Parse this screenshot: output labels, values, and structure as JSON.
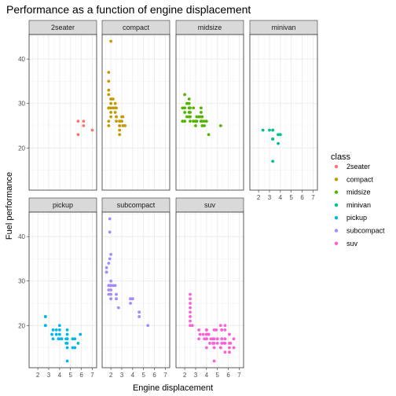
{
  "chart_data": {
    "type": "scatter",
    "title": "Performance as a function of engine displacement",
    "xlabel": "Engine displacement",
    "ylabel": "Fuel performance",
    "xlim": [
      1.2,
      7.4
    ],
    "ylim": [
      10.5,
      45.5
    ],
    "x_ticks": [
      2,
      3,
      4,
      5,
      6,
      7
    ],
    "y_ticks": [
      20,
      30,
      40
    ],
    "grid": true,
    "facet_by": "class",
    "legend": {
      "title": "class",
      "position": "right"
    },
    "series": [
      {
        "name": "2seater",
        "color": "#F8766D",
        "points": [
          [
            5.7,
            26
          ],
          [
            5.7,
            23
          ],
          [
            6.2,
            26
          ],
          [
            6.2,
            25
          ],
          [
            7.0,
            24
          ]
        ]
      },
      {
        "name": "compact",
        "color": "#C49A00",
        "points": [
          [
            1.8,
            29
          ],
          [
            1.8,
            29
          ],
          [
            2.0,
            31
          ],
          [
            2.0,
            30
          ],
          [
            2.8,
            26
          ],
          [
            2.8,
            26
          ],
          [
            3.1,
            27
          ],
          [
            1.8,
            26
          ],
          [
            1.8,
            25
          ],
          [
            2.0,
            28
          ],
          [
            2.0,
            27
          ],
          [
            2.8,
            25
          ],
          [
            2.8,
            25
          ],
          [
            3.1,
            25
          ],
          [
            1.8,
            37
          ],
          [
            1.8,
            35
          ],
          [
            1.8,
            29
          ],
          [
            2.0,
            44
          ],
          [
            1.8,
            33
          ],
          [
            2.5,
            26
          ],
          [
            2.5,
            27
          ],
          [
            2.2,
            31
          ],
          [
            2.2,
            29
          ],
          [
            2.4,
            30
          ],
          [
            2.4,
            29
          ],
          [
            3.0,
            27
          ],
          [
            3.3,
            25
          ],
          [
            1.8,
            32
          ],
          [
            2.0,
            29
          ],
          [
            2.8,
            24
          ],
          [
            2.8,
            23
          ],
          [
            2.5,
            29
          ],
          [
            2.5,
            27
          ],
          [
            2.4,
            28
          ],
          [
            3.0,
            26
          ]
        ]
      },
      {
        "name": "midsize",
        "color": "#53B400",
        "points": [
          [
            2.8,
            26
          ],
          [
            3.1,
            27
          ],
          [
            4.2,
            23
          ],
          [
            2.4,
            27
          ],
          [
            2.4,
            30
          ],
          [
            3.1,
            26
          ],
          [
            3.5,
            29
          ],
          [
            3.6,
            26
          ],
          [
            3.6,
            25
          ],
          [
            2.4,
            28
          ],
          [
            2.4,
            29
          ],
          [
            2.5,
            26
          ],
          [
            2.5,
            27
          ],
          [
            3.5,
            27
          ],
          [
            3.5,
            26
          ],
          [
            3.0,
            26
          ],
          [
            3.0,
            25
          ],
          [
            3.5,
            28
          ],
          [
            1.8,
            29
          ],
          [
            2.2,
            27
          ],
          [
            2.2,
            30
          ],
          [
            2.4,
            31
          ],
          [
            2.4,
            29
          ],
          [
            2.5,
            29
          ],
          [
            2.5,
            28
          ],
          [
            3.5,
            26
          ],
          [
            3.3,
            27
          ],
          [
            3.8,
            26
          ],
          [
            3.8,
            25
          ],
          [
            5.3,
            25
          ],
          [
            1.8,
            26
          ],
          [
            1.8,
            26
          ],
          [
            2.0,
            26
          ],
          [
            2.0,
            32
          ],
          [
            2.8,
            29
          ],
          [
            3.1,
            26
          ],
          [
            2.0,
            28
          ],
          [
            2.0,
            29
          ],
          [
            2.8,
            26
          ],
          [
            3.6,
            27
          ],
          [
            4.0,
            26
          ]
        ]
      },
      {
        "name": "minivan",
        "color": "#00C094",
        "points": [
          [
            2.4,
            24
          ],
          [
            3.0,
            24
          ],
          [
            3.3,
            22
          ],
          [
            3.3,
            24
          ],
          [
            3.3,
            24
          ],
          [
            3.3,
            17
          ],
          [
            3.3,
            22
          ],
          [
            3.8,
            21
          ],
          [
            3.8,
            23
          ],
          [
            3.8,
            23
          ],
          [
            4.0,
            23
          ]
        ]
      },
      {
        "name": "pickup",
        "color": "#00B6EB",
        "points": [
          [
            2.7,
            20
          ],
          [
            2.7,
            22
          ],
          [
            3.4,
            17
          ],
          [
            3.7,
            19
          ],
          [
            3.7,
            18
          ],
          [
            3.9,
            17
          ],
          [
            3.9,
            17
          ],
          [
            4.7,
            19
          ],
          [
            4.7,
            17
          ],
          [
            4.7,
            17
          ],
          [
            5.2,
            17
          ],
          [
            5.2,
            15
          ],
          [
            4.7,
            12
          ],
          [
            4.7,
            17
          ],
          [
            5.2,
            17
          ],
          [
            5.7,
            16
          ],
          [
            5.9,
            18
          ],
          [
            4.7,
            15
          ],
          [
            4.7,
            16
          ],
          [
            2.7,
            22
          ],
          [
            2.7,
            20
          ],
          [
            3.4,
            19
          ],
          [
            4.0,
            18
          ],
          [
            4.0,
            19
          ],
          [
            4.6,
            17
          ],
          [
            5.4,
            17
          ],
          [
            3.3,
            18
          ],
          [
            4.0,
            20
          ],
          [
            4.0,
            17
          ],
          [
            4.2,
            17
          ],
          [
            4.6,
            16
          ],
          [
            5.4,
            15
          ],
          [
            4.7,
            18
          ],
          [
            2.7,
            20
          ]
        ]
      },
      {
        "name": "subcompact",
        "color": "#A58AFF",
        "points": [
          [
            1.8,
            28
          ],
          [
            1.9,
            29
          ],
          [
            1.6,
            32
          ],
          [
            1.6,
            33
          ],
          [
            1.6,
            32
          ],
          [
            1.8,
            34
          ],
          [
            2.0,
            36
          ],
          [
            1.8,
            29
          ],
          [
            2.0,
            29
          ],
          [
            2.0,
            29
          ],
          [
            2.0,
            26
          ],
          [
            2.5,
            26
          ],
          [
            3.8,
            26
          ],
          [
            3.8,
            26
          ],
          [
            3.8,
            25
          ],
          [
            4.0,
            26
          ],
          [
            4.0,
            26
          ],
          [
            4.6,
            23
          ],
          [
            4.6,
            22
          ],
          [
            4.6,
            23
          ],
          [
            5.4,
            20
          ],
          [
            1.9,
            44
          ],
          [
            1.9,
            41
          ],
          [
            1.8,
            27
          ],
          [
            2.0,
            26
          ],
          [
            2.4,
            29
          ],
          [
            2.5,
            26
          ],
          [
            2.2,
            29
          ],
          [
            2.0,
            28
          ],
          [
            2.0,
            27
          ],
          [
            2.7,
            24
          ],
          [
            2.0,
            30
          ],
          [
            2.5,
            27
          ],
          [
            1.8,
            29
          ],
          [
            1.9,
            35
          ]
        ]
      },
      {
        "name": "suv",
        "color": "#FB61D7",
        "points": [
          [
            5.3,
            20
          ],
          [
            5.3,
            15
          ],
          [
            5.7,
            20
          ],
          [
            6.5,
            17
          ],
          [
            4.0,
            19
          ],
          [
            4.0,
            17
          ],
          [
            4.6,
            17
          ],
          [
            5.0,
            17
          ],
          [
            4.7,
            17
          ],
          [
            4.7,
            19
          ],
          [
            5.7,
            19
          ],
          [
            5.7,
            17
          ],
          [
            6.1,
            18
          ],
          [
            4.6,
            16
          ],
          [
            5.4,
            17
          ],
          [
            5.4,
            16
          ],
          [
            4.7,
            12
          ],
          [
            5.7,
            14
          ],
          [
            4.0,
            19
          ],
          [
            4.6,
            16
          ],
          [
            3.8,
            17
          ],
          [
            4.0,
            18
          ],
          [
            4.2,
            18
          ],
          [
            4.6,
            17
          ],
          [
            5.0,
            17
          ],
          [
            5.4,
            17
          ],
          [
            4.4,
            17
          ],
          [
            6.2,
            16
          ],
          [
            5.3,
            15
          ],
          [
            2.5,
            24
          ],
          [
            2.5,
            25
          ],
          [
            2.5,
            26
          ],
          [
            2.5,
            27
          ],
          [
            2.5,
            23
          ],
          [
            2.5,
            21
          ],
          [
            2.5,
            20
          ],
          [
            2.5,
            22
          ],
          [
            2.7,
            20
          ],
          [
            3.3,
            19
          ],
          [
            4.0,
            18
          ],
          [
            4.7,
            15
          ],
          [
            5.6,
            16
          ],
          [
            5.4,
            19
          ],
          [
            4.0,
            15
          ],
          [
            3.4,
            18
          ],
          [
            3.3,
            17
          ],
          [
            4.0,
            17
          ],
          [
            4.7,
            16
          ],
          [
            5.7,
            16
          ],
          [
            6.5,
            15
          ],
          [
            4.2,
            18
          ],
          [
            6.1,
            15
          ],
          [
            6.1,
            14
          ],
          [
            3.7,
            18
          ],
          [
            4.0,
            19
          ],
          [
            5.7,
            17
          ],
          [
            4.0,
            17
          ],
          [
            5.0,
            16
          ],
          [
            5.4,
            19
          ],
          [
            6.1,
            16
          ],
          [
            4.3,
            16
          ],
          [
            4.9,
            19
          ]
        ]
      }
    ]
  }
}
